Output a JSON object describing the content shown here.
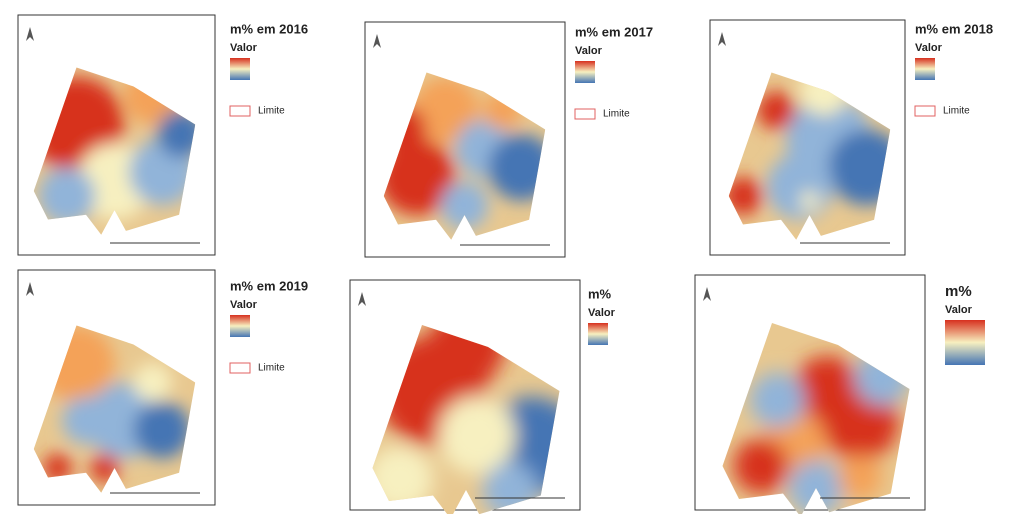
{
  "panels": [
    {
      "title": "m% em 2016",
      "legend_label": "Valor",
      "boundary_label": "Limite"
    },
    {
      "title": "m% em 2017",
      "legend_label": "Valor",
      "boundary_label": "Limite"
    },
    {
      "title": "m% em 2018",
      "legend_label": "Valor",
      "boundary_label": "Limite"
    },
    {
      "title": "m% em 2019",
      "legend_label": "Valor",
      "boundary_label": "Limite"
    },
    {
      "title": "m%",
      "legend_label": "Valor"
    },
    {
      "title": "m%",
      "legend_label": "Valor"
    }
  ]
}
